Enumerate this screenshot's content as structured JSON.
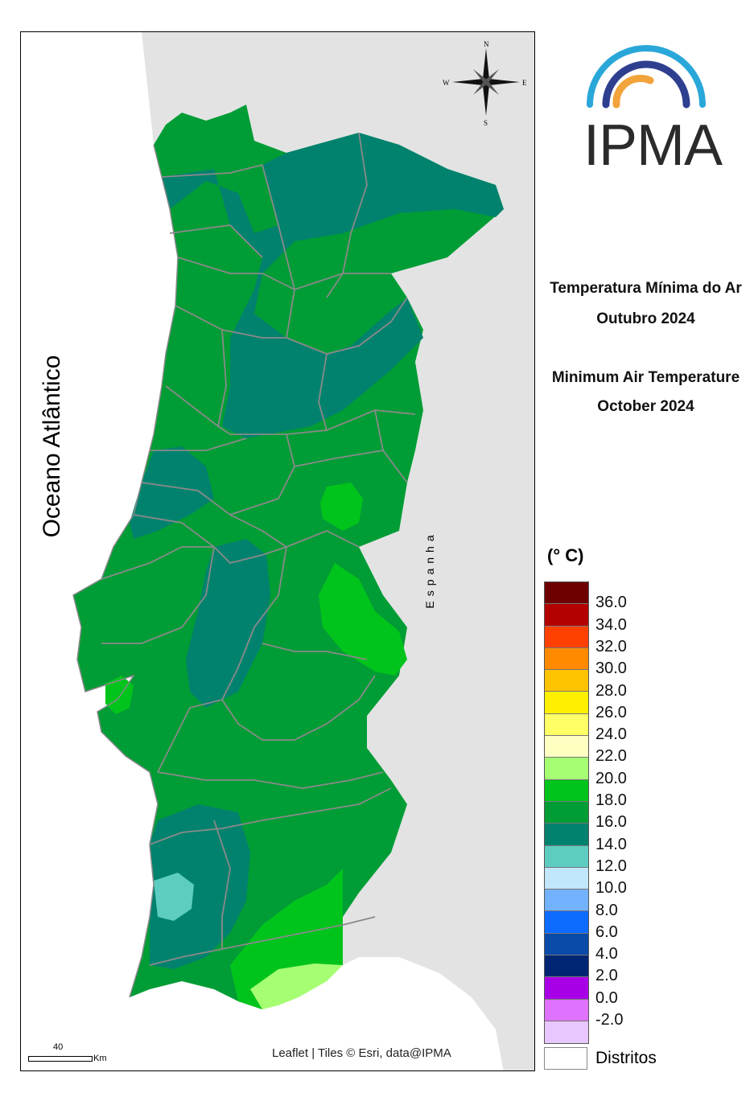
{
  "map": {
    "ocean_label": "Oceano Atlântico",
    "spain_label": "Espanha",
    "attribution": "Leaflet | Tiles © Esri, data@IPMA",
    "scale": {
      "value": "40",
      "unit": "Km"
    },
    "compass": {
      "n": "N",
      "s": "S",
      "e": "E",
      "w": "W"
    },
    "colors": {
      "spain": "#e3e3e3",
      "sea": "#ffffff",
      "district_border": "#8a8a8a"
    }
  },
  "logo": {
    "text": "IPMA",
    "arc_colors": [
      "#2aa7d9",
      "#2f3f8f",
      "#f2a33a"
    ]
  },
  "title": {
    "pt_line1": "Temperatura Mínima do Ar",
    "pt_line2": "Outubro 2024",
    "en_line1": "Minimum Air Temperature",
    "en_line2": "October 2024"
  },
  "legend": {
    "unit": "(° C)",
    "items": [
      {
        "label": "36.0",
        "color": "#6e0000"
      },
      {
        "label": "34.0",
        "color": "#b30000"
      },
      {
        "label": "32.0",
        "color": "#ff4000"
      },
      {
        "label": "30.0",
        "color": "#ff8a00"
      },
      {
        "label": "28.0",
        "color": "#ffc300"
      },
      {
        "label": "26.0",
        "color": "#ffef00"
      },
      {
        "label": "24.0",
        "color": "#ffff66"
      },
      {
        "label": "22.0",
        "color": "#ffffc2"
      },
      {
        "label": "20.0",
        "color": "#a6ff73"
      },
      {
        "label": "18.0",
        "color": "#00c41c"
      },
      {
        "label": "16.0",
        "color": "#009c35"
      },
      {
        "label": "14.0",
        "color": "#00826e"
      },
      {
        "label": "12.0",
        "color": "#5ccdc0"
      },
      {
        "label": "10.0",
        "color": "#c2e6fa"
      },
      {
        "label": "8.0",
        "color": "#73b2ff"
      },
      {
        "label": "6.0",
        "color": "#0d6bff"
      },
      {
        "label": "4.0",
        "color": "#0a4aa8"
      },
      {
        "label": "2.0",
        "color": "#002673"
      },
      {
        "label": "0.0",
        "color": "#a800e6"
      },
      {
        "label": "-2.0",
        "color": "#df73ff"
      },
      {
        "label": "",
        "color": "#e8c6ff"
      }
    ],
    "distritos_label": "Distritos"
  }
}
